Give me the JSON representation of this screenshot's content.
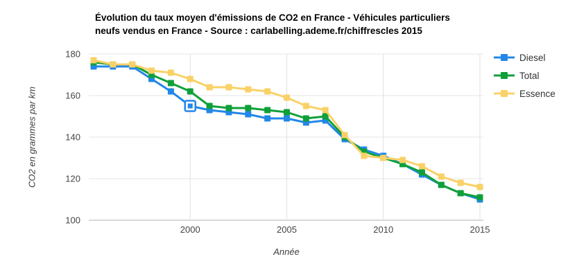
{
  "header": {
    "title_line1": "Évolution du taux moyen d'émissions de CO2 en France - Véhicules particuliers",
    "title_line2": "neufs vendus en France - Source : carlabelling.ademe.fr/chiffrescles 2015"
  },
  "legend": {
    "items": [
      {
        "label": "Diesel",
        "color": "#2287e8"
      },
      {
        "label": "Total",
        "color": "#0fa039"
      },
      {
        "label": "Essence",
        "color": "#f9d167"
      }
    ]
  },
  "chart_data": {
    "type": "line",
    "title": "Évolution du taux moyen d'émissions de CO2 en France - Véhicules particuliers neufs vendus en France - Source : carlabelling.ademe.fr/chiffrescles 2015",
    "xlabel": "Année",
    "ylabel": "CO2 en grammes par km",
    "x": [
      1995,
      1996,
      1997,
      1998,
      1999,
      2000,
      2001,
      2002,
      2003,
      2004,
      2005,
      2006,
      2007,
      2008,
      2009,
      2010,
      2011,
      2012,
      2013,
      2014,
      2015
    ],
    "series": [
      {
        "name": "Diesel",
        "color": "#2287e8",
        "values": [
          174,
          174,
          174,
          168,
          162,
          155,
          153,
          152,
          151,
          149,
          149,
          147,
          148,
          139,
          134,
          131,
          127,
          122,
          117,
          113,
          110
        ]
      },
      {
        "name": "Total",
        "color": "#0fa039",
        "values": [
          176,
          175,
          175,
          170,
          166,
          162,
          155,
          154,
          154,
          153,
          152,
          149,
          150,
          140,
          133,
          130,
          127,
          123,
          117,
          113,
          111
        ]
      },
      {
        "name": "Essence",
        "color": "#f9d167",
        "values": [
          177,
          175,
          175,
          172,
          171,
          168,
          164,
          164,
          163,
          162,
          159,
          155,
          153,
          141,
          131,
          130,
          129,
          126,
          121,
          118,
          116
        ]
      }
    ],
    "xlim": [
      1995,
      2015
    ],
    "ylim": [
      100,
      180
    ],
    "xticks": [
      2000,
      2005,
      2010,
      2015
    ],
    "yticks": [
      100,
      120,
      140,
      160,
      180
    ],
    "grid": true,
    "legend_position": "right",
    "highlighted_point": {
      "series": "Diesel",
      "x": 2000,
      "value": 155
    }
  },
  "style": {
    "gridline_color": "#e6e6e6",
    "vertical_gridline_color": "#e0e0e0",
    "baseline_color": "#b0b0b0",
    "tick_label_color": "#444444"
  }
}
